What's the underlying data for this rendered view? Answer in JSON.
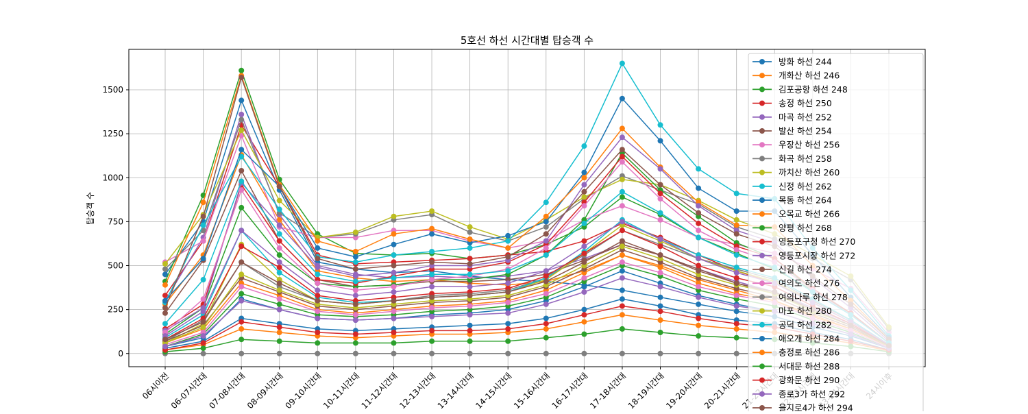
{
  "chart_data": {
    "type": "line",
    "title": "5호선 하선 시간대별 탑승객 수",
    "xlabel": "",
    "ylabel": "탑승객 수",
    "categories": [
      "06시이전",
      "06-07시간대",
      "07-08시간대",
      "08-09시간대",
      "09-10시간대",
      "10-11시간대",
      "11-12시간대",
      "12-13시간대",
      "13-14시간대",
      "14-15시간대",
      "15-16시간대",
      "16-17시간대",
      "17-18시간대",
      "18-19시간대",
      "19-20시간대",
      "20-21시간대",
      "21-22시간대",
      "22-23시간대",
      "23-24시간대",
      "24시이후"
    ],
    "ylim": [
      -75,
      1730
    ],
    "yticks": [
      0,
      250,
      500,
      750,
      1000,
      1250,
      1500
    ],
    "grid": true,
    "legend_position": "upper right",
    "series": [
      {
        "name": "방화 하선 244",
        "color": "#1f77b4",
        "values": [
          450,
          750,
          1440,
          930,
          520,
          480,
          460,
          470,
          440,
          420,
          410,
          390,
          360,
          320,
          280,
          240,
          210,
          150,
          100,
          30
        ]
      },
      {
        "name": "개화산 하선 246",
        "color": "#ff7f0e",
        "values": [
          280,
          560,
          1130,
          760,
          470,
          430,
          410,
          420,
          400,
          390,
          410,
          470,
          560,
          500,
          420,
          360,
          300,
          220,
          140,
          40
        ]
      },
      {
        "name": "김포공항 하선 248",
        "color": "#2ca02c",
        "values": [
          410,
          900,
          1610,
          990,
          680,
          570,
          560,
          570,
          540,
          560,
          620,
          720,
          890,
          790,
          660,
          570,
          480,
          360,
          230,
          60
        ]
      },
      {
        "name": "송정 하선 250",
        "color": "#d62728",
        "values": [
          330,
          640,
          1300,
          950,
          560,
          510,
          520,
          530,
          540,
          560,
          580,
          640,
          740,
          660,
          560,
          470,
          400,
          300,
          190,
          50
        ]
      },
      {
        "name": "마곡 하선 252",
        "color": "#9467bd",
        "values": [
          300,
          660,
          1360,
          790,
          500,
          450,
          430,
          440,
          430,
          440,
          470,
          540,
          620,
          560,
          480,
          410,
          350,
          260,
          170,
          45
        ]
      },
      {
        "name": "발산 하선 254",
        "color": "#8c564b",
        "values": [
          230,
          530,
          1040,
          640,
          420,
          380,
          390,
          410,
          410,
          420,
          450,
          530,
          620,
          560,
          480,
          400,
          340,
          250,
          160,
          40
        ]
      },
      {
        "name": "우장산 하선 256",
        "color": "#e377c2",
        "values": [
          520,
          640,
          1240,
          720,
          660,
          660,
          700,
          700,
          640,
          600,
          640,
          760,
          840,
          760,
          660,
          620,
          570,
          480,
          370,
          120
        ]
      },
      {
        "name": "화곡 하선 258",
        "color": "#7f7f7f",
        "values": [
          480,
          700,
          1330,
          800,
          660,
          680,
          760,
          790,
          690,
          640,
          720,
          880,
          1010,
          930,
          850,
          720,
          650,
          540,
          420,
          140
        ]
      },
      {
        "name": "까치산 하선 260",
        "color": "#bcbd22",
        "values": [
          510,
          790,
          1270,
          870,
          660,
          690,
          780,
          810,
          720,
          650,
          760,
          890,
          990,
          960,
          870,
          760,
          680,
          560,
          440,
          150
        ]
      },
      {
        "name": "신정 하선 262",
        "color": "#17becf",
        "values": [
          290,
          730,
          1120,
          820,
          550,
          520,
          560,
          580,
          600,
          640,
          860,
          1180,
          1650,
          1300,
          1050,
          910,
          880,
          600,
          360,
          100
        ]
      },
      {
        "name": "목동 하선 264",
        "color": "#1f77b4",
        "values": [
          300,
          540,
          1160,
          950,
          600,
          550,
          620,
          680,
          630,
          670,
          750,
          1030,
          1450,
          1210,
          940,
          810,
          810,
          560,
          320,
          90
        ]
      },
      {
        "name": "오목교 하선 266",
        "color": "#ff7f0e",
        "values": [
          390,
          860,
          1580,
          960,
          640,
          580,
          680,
          710,
          650,
          600,
          780,
          1000,
          1280,
          1060,
          860,
          730,
          720,
          500,
          300,
          80
        ]
      },
      {
        "name": "양평 하선 268",
        "color": "#2ca02c",
        "values": [
          110,
          260,
          830,
          560,
          400,
          380,
          390,
          420,
          420,
          450,
          560,
          760,
          1140,
          930,
          780,
          630,
          540,
          360,
          220,
          60
        ]
      },
      {
        "name": "영등포구청 하선 270",
        "color": "#d62728",
        "values": [
          140,
          280,
          960,
          640,
          420,
          400,
          440,
          480,
          480,
          520,
          620,
          860,
          1120,
          910,
          740,
          610,
          540,
          370,
          230,
          60
        ]
      },
      {
        "name": "영등포시장 하선 272",
        "color": "#9467bd",
        "values": [
          130,
          260,
          970,
          730,
          490,
          440,
          460,
          500,
          500,
          530,
          640,
          960,
          1230,
          1050,
          840,
          700,
          630,
          430,
          260,
          70
        ]
      },
      {
        "name": "신길 하선 274",
        "color": "#8c564b",
        "values": [
          260,
          780,
          1570,
          950,
          540,
          480,
          500,
          520,
          510,
          550,
          680,
          920,
          1160,
          960,
          800,
          680,
          610,
          440,
          280,
          80
        ]
      },
      {
        "name": "여의도 하선 276",
        "color": "#e377c2",
        "values": [
          120,
          310,
          930,
          600,
          400,
          360,
          380,
          420,
          440,
          480,
          600,
          840,
          1090,
          880,
          700,
          590,
          520,
          360,
          220,
          60
        ]
      },
      {
        "name": "여의나루 하선 278",
        "color": "#7f7f7f",
        "values": [
          70,
          190,
          520,
          380,
          300,
          280,
          300,
          330,
          340,
          360,
          430,
          560,
          700,
          620,
          540,
          480,
          420,
          300,
          190,
          50
        ]
      },
      {
        "name": "마포 하선 280",
        "color": "#bcbd22",
        "values": [
          60,
          170,
          620,
          420,
          300,
          280,
          300,
          320,
          330,
          350,
          420,
          570,
          730,
          640,
          540,
          470,
          410,
          290,
          180,
          50
        ]
      },
      {
        "name": "공덕 하선 282",
        "color": "#17becf",
        "values": [
          90,
          220,
          700,
          460,
          320,
          290,
          300,
          320,
          330,
          350,
          430,
          580,
          760,
          650,
          560,
          490,
          430,
          310,
          190,
          50
        ]
      },
      {
        "name": "애오개 하선 284",
        "color": "#1f77b4",
        "values": [
          40,
          90,
          310,
          250,
          200,
          190,
          200,
          220,
          230,
          250,
          300,
          380,
          470,
          400,
          330,
          280,
          240,
          170,
          110,
          30
        ]
      },
      {
        "name": "충정로 하선 286",
        "color": "#ff7f0e",
        "values": [
          60,
          140,
          400,
          330,
          250,
          230,
          250,
          270,
          280,
          300,
          360,
          460,
          560,
          490,
          400,
          340,
          300,
          210,
          140,
          40
        ]
      },
      {
        "name": "서대문 하선 288",
        "color": "#2ca02c",
        "values": [
          40,
          110,
          340,
          280,
          220,
          210,
          220,
          240,
          250,
          270,
          320,
          410,
          500,
          440,
          360,
          310,
          270,
          190,
          120,
          30
        ]
      },
      {
        "name": "광화문 하선 290",
        "color": "#d62728",
        "values": [
          80,
          200,
          610,
          490,
          330,
          300,
          320,
          340,
          350,
          370,
          440,
          570,
          700,
          610,
          500,
          430,
          380,
          270,
          170,
          45
        ]
      },
      {
        "name": "종로3가 하선 292",
        "color": "#9467bd",
        "values": [
          100,
          240,
          700,
          520,
          360,
          330,
          350,
          380,
          380,
          400,
          470,
          610,
          750,
          650,
          540,
          460,
          400,
          290,
          180,
          50
        ]
      },
      {
        "name": "을지로4가 하선 294",
        "color": "#8c564b",
        "values": [
          70,
          160,
          430,
          350,
          270,
          250,
          270,
          290,
          300,
          320,
          380,
          480,
          590,
          520,
          430,
          370,
          320,
          230,
          150,
          40
        ]
      },
      {
        "name": "",
        "color": "#e377c2",
        "values": [
          50,
          120,
          380,
          310,
          240,
          220,
          240,
          260,
          270,
          290,
          340,
          430,
          520,
          460,
          380,
          330,
          290,
          200,
          130,
          35
        ]
      },
      {
        "name": "",
        "color": "#7f7f7f",
        "values": [
          0,
          0,
          0,
          0,
          0,
          0,
          0,
          0,
          0,
          0,
          0,
          0,
          0,
          0,
          0,
          0,
          0,
          0,
          0,
          0
        ]
      },
      {
        "name": "",
        "color": "#bcbd22",
        "values": [
          60,
          150,
          450,
          360,
          280,
          260,
          280,
          300,
          310,
          330,
          390,
          500,
          610,
          540,
          450,
          390,
          340,
          240,
          160,
          40
        ]
      },
      {
        "name": "",
        "color": "#17becf",
        "values": [
          170,
          420,
          980,
          680,
          450,
          410,
          430,
          450,
          450,
          470,
          560,
          740,
          920,
          800,
          660,
          560,
          490,
          350,
          220,
          60
        ]
      },
      {
        "name": "",
        "color": "#1f77b4",
        "values": [
          30,
          70,
          200,
          170,
          140,
          130,
          140,
          150,
          160,
          170,
          200,
          250,
          310,
          270,
          220,
          190,
          170,
          120,
          80,
          20
        ]
      },
      {
        "name": "",
        "color": "#ff7f0e",
        "values": [
          20,
          50,
          140,
          120,
          100,
          90,
          100,
          110,
          110,
          120,
          140,
          180,
          220,
          190,
          160,
          140,
          120,
          90,
          60,
          15
        ]
      },
      {
        "name": "",
        "color": "#2ca02c",
        "values": [
          10,
          30,
          80,
          70,
          60,
          60,
          60,
          70,
          70,
          70,
          90,
          110,
          140,
          120,
          100,
          90,
          80,
          60,
          40,
          10
        ]
      },
      {
        "name": "",
        "color": "#d62728",
        "values": [
          20,
          60,
          180,
          150,
          120,
          110,
          120,
          130,
          130,
          140,
          170,
          220,
          270,
          240,
          200,
          170,
          150,
          110,
          70,
          20
        ]
      },
      {
        "name": "",
        "color": "#9467bd",
        "values": [
          40,
          100,
          300,
          250,
          200,
          190,
          200,
          210,
          220,
          230,
          280,
          350,
          430,
          380,
          320,
          270,
          240,
          170,
          110,
          30
        ]
      },
      {
        "name": "",
        "color": "#8c564b",
        "values": [
          80,
          180,
          520,
          400,
          300,
          280,
          300,
          320,
          330,
          350,
          410,
          520,
          640,
          560,
          470,
          400,
          350,
          250,
          160,
          45
        ]
      }
    ]
  }
}
